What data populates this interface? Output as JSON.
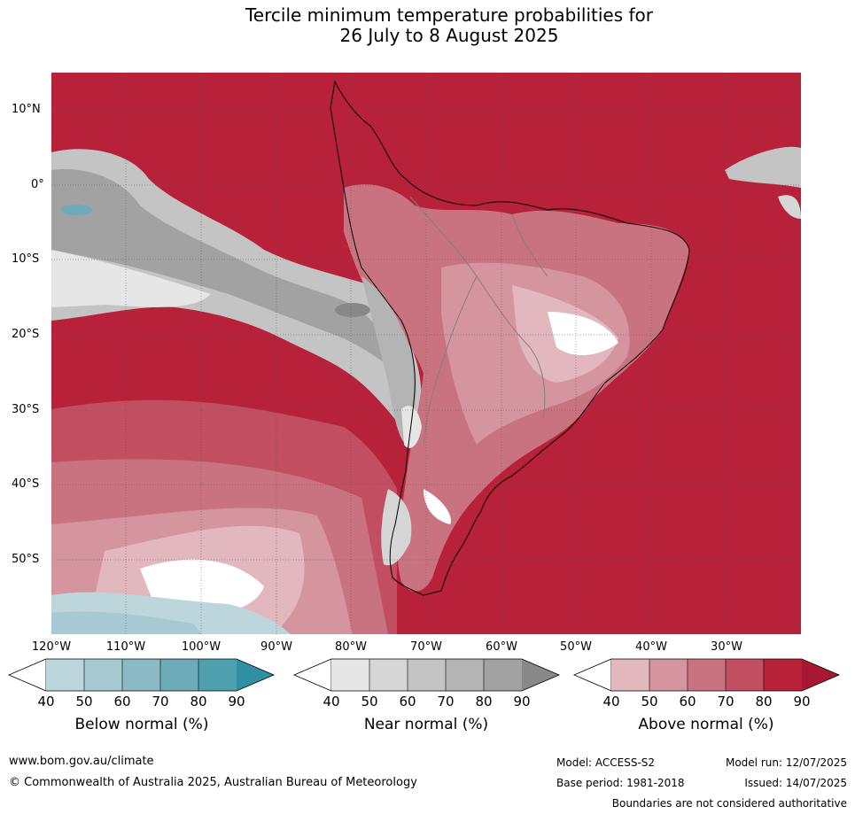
{
  "title": {
    "line1": "Tercile minimum temperature probabilities for",
    "line2": "26 July to 8 August 2025"
  },
  "map": {
    "lat_labels": [
      "10°N",
      "0°",
      "10°S",
      "20°S",
      "30°S",
      "40°S",
      "50°S"
    ],
    "lon_labels": [
      "120°W",
      "110°W",
      "100°W",
      "90°W",
      "80°W",
      "70°W",
      "60°W",
      "50°W",
      "40°W",
      "30°W"
    ],
    "colors": {
      "above": [
        "#e2b7be",
        "#d5959f",
        "#ca7380",
        "#c14f61",
        "#b8213a",
        "#a81832"
      ],
      "near": [
        "#e6e6e6",
        "#d6d6d6",
        "#c4c4c4",
        "#b4b4b4",
        "#a2a2a2",
        "#888888"
      ],
      "below": [
        "#bcd6dc",
        "#a7c9d1",
        "#8bbac4",
        "#6eabb8",
        "#4ea0af",
        "#2f8fa3"
      ],
      "land_border": "#000000",
      "state_border": "#808080"
    }
  },
  "colorbars": {
    "below": {
      "label": "Below normal (%)",
      "ticks": [
        "40",
        "50",
        "60",
        "70",
        "80",
        "90"
      ]
    },
    "near": {
      "label": "Near normal (%)",
      "ticks": [
        "40",
        "50",
        "60",
        "70",
        "80",
        "90"
      ]
    },
    "above": {
      "label": "Above normal (%)",
      "ticks": [
        "40",
        "50",
        "60",
        "70",
        "80",
        "90"
      ]
    }
  },
  "footer": {
    "url": "www.bom.gov.au/climate",
    "copyright": "© Commonwealth of Australia 2025, Australian Bureau of Meteorology",
    "model": "Model: ACCESS-S2",
    "base_period": "Base period: 1981-2018",
    "model_run": "Model run: 12/07/2025",
    "issued": "Issued: 14/07/2025",
    "disclaimer": "Boundaries are not considered authoritative"
  }
}
